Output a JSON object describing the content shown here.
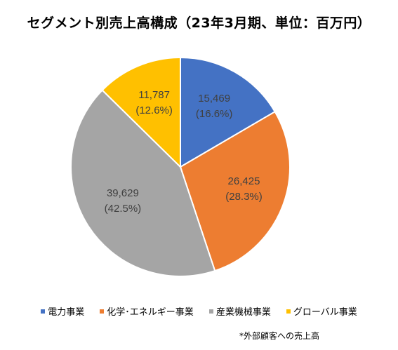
{
  "chart_data": {
    "type": "pie",
    "title": "セグメント別売上高構成（23年3月期、単位：百万円）",
    "slices": [
      {
        "name": "電力事業",
        "value": 15469,
        "percent_label": "(16.6%)",
        "value_label": "15,469",
        "color": "#4472C4"
      },
      {
        "name": "化学･エネルギー事業",
        "value": 26425,
        "percent_label": "(28.3%)",
        "value_label": "26,425",
        "color": "#ED7D31"
      },
      {
        "name": "産業機械事業",
        "value": 39629,
        "percent_label": "(42.5%)",
        "value_label": "39,629",
        "color": "#A5A5A5"
      },
      {
        "name": "グローバル事業",
        "value": 11787,
        "percent_label": "(12.6%)",
        "value_label": "11,787",
        "color": "#FFC000"
      }
    ],
    "legend_position": "bottom",
    "footnote": "*外部顧客への売上高"
  }
}
